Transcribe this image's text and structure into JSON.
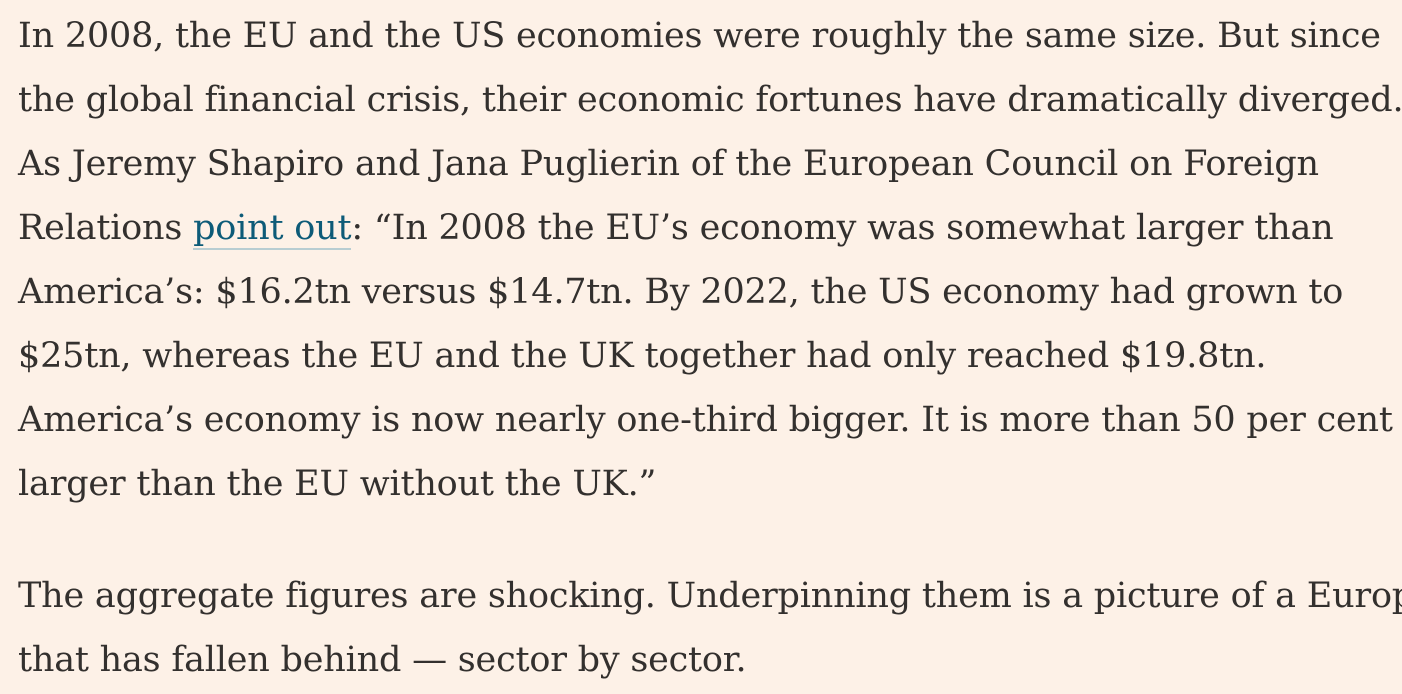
{
  "article": {
    "paragraph1": {
      "lines": [
        "In 2008, the EU and the US economies were roughly the same size. But since",
        "the global financial crisis, their economic fortunes have dramatically diverged.",
        "As Jeremy Shapiro and Jana Puglierin of the European Council on Foreign"
      ],
      "line4_before_link": "Relations ",
      "link_text": "point out",
      "line4_after_link": ": “In 2008 the EU’s economy was somewhat larger than",
      "lines_after": [
        "America’s: $16.2tn versus $14.7tn. By 2022, the US economy had grown to",
        "$25tn, whereas the EU and the UK together had only reached $19.8tn.",
        "America’s economy is now nearly one-third bigger. It is more than 50 per cent",
        "larger than the EU without the UK.”"
      ]
    },
    "paragraph2": {
      "lines": [
        "The aggregate figures are shocking. Underpinning them is a picture of a Europe",
        "that has fallen behind — sector by sector."
      ]
    },
    "colors": {
      "background": "#fdf1e7",
      "text": "#33302e",
      "link": "#0d5b78"
    }
  }
}
